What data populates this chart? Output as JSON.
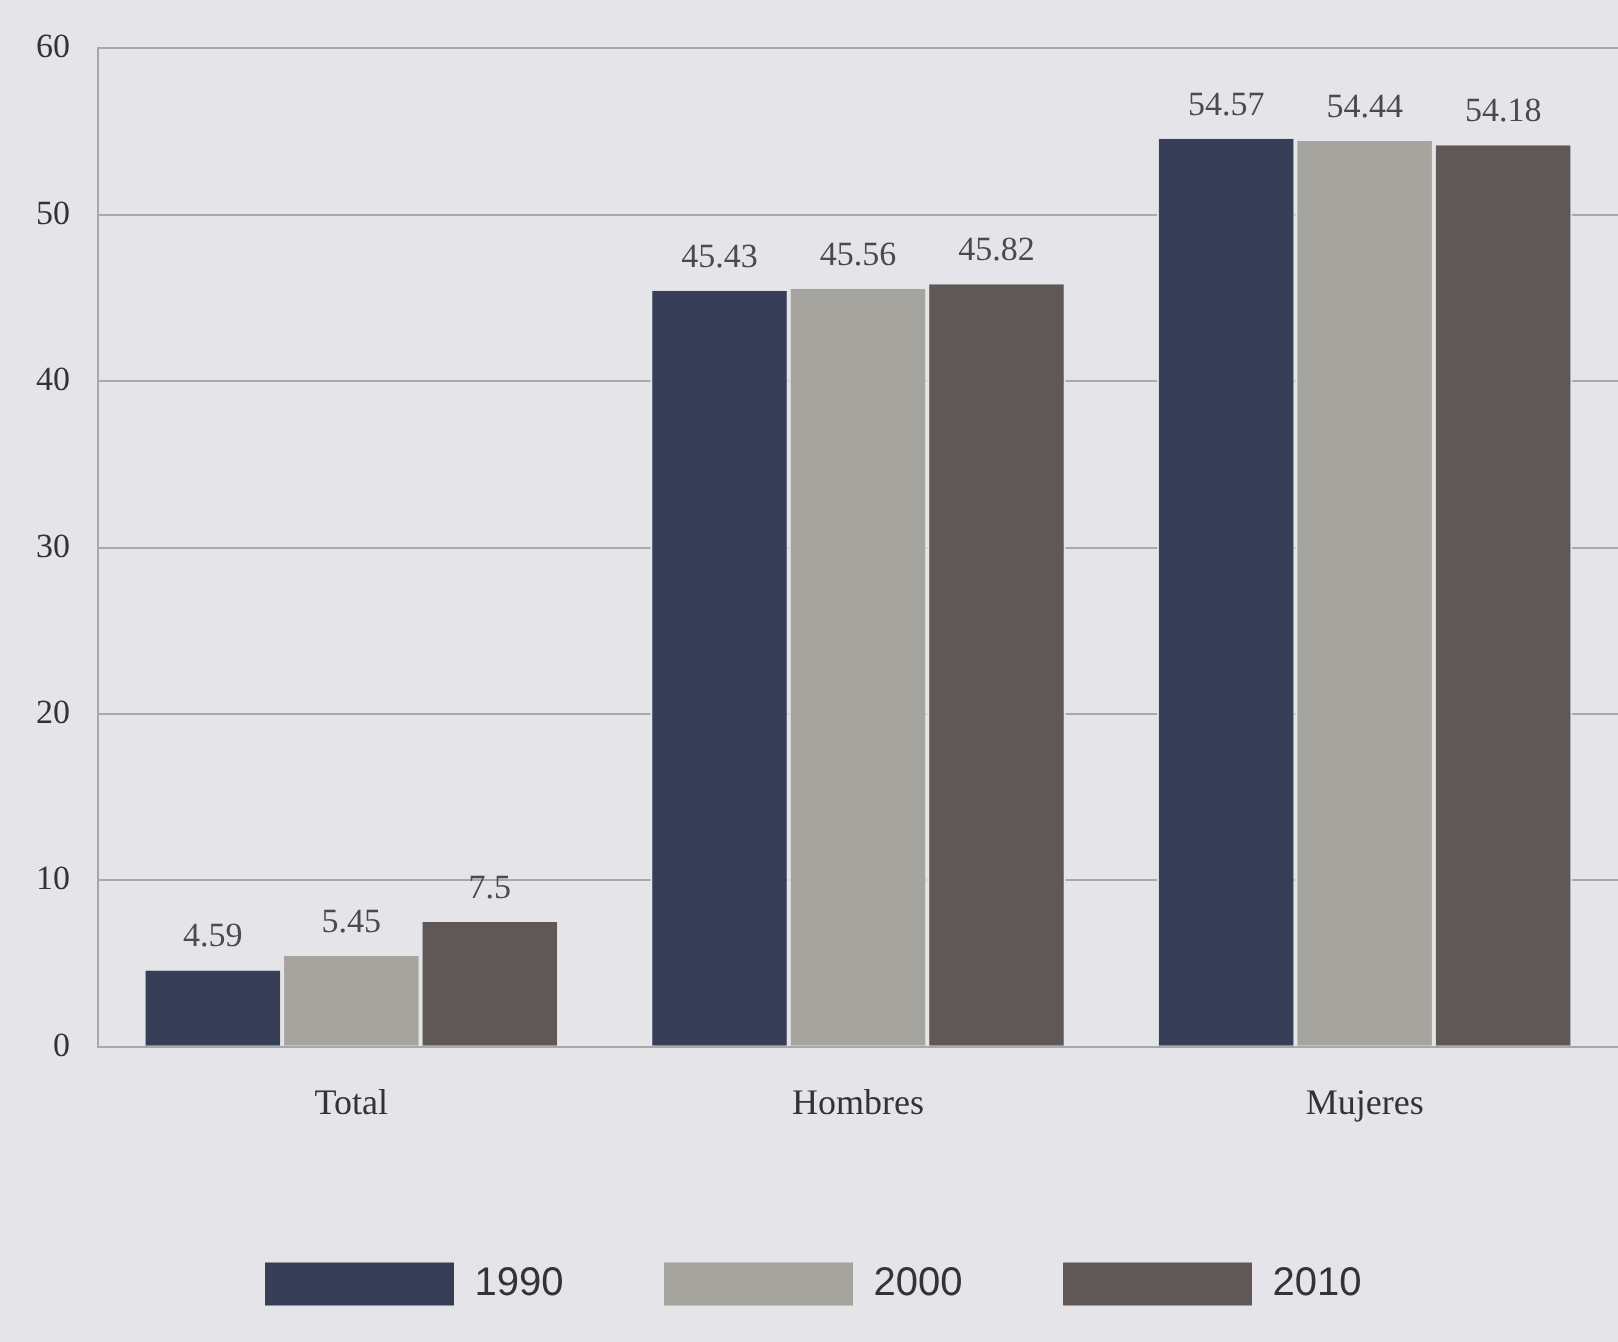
{
  "chart_data": {
    "type": "bar",
    "categories": [
      "Total",
      "Hombres",
      "Mujeres"
    ],
    "series": [
      {
        "name": "1990",
        "color": "#373f58",
        "values": [
          4.59,
          45.43,
          54.57
        ]
      },
      {
        "name": "2000",
        "color": "#a6a49e",
        "values": [
          5.45,
          45.56,
          54.44
        ]
      },
      {
        "name": "2010",
        "color": "#5f5857",
        "values": [
          7.5,
          45.82,
          54.18
        ]
      }
    ],
    "ylim": [
      0,
      60
    ],
    "yticks": [
      0,
      10,
      20,
      30,
      40,
      50,
      60
    ],
    "grid": "y",
    "legend": "bottom",
    "data_labels": true
  }
}
